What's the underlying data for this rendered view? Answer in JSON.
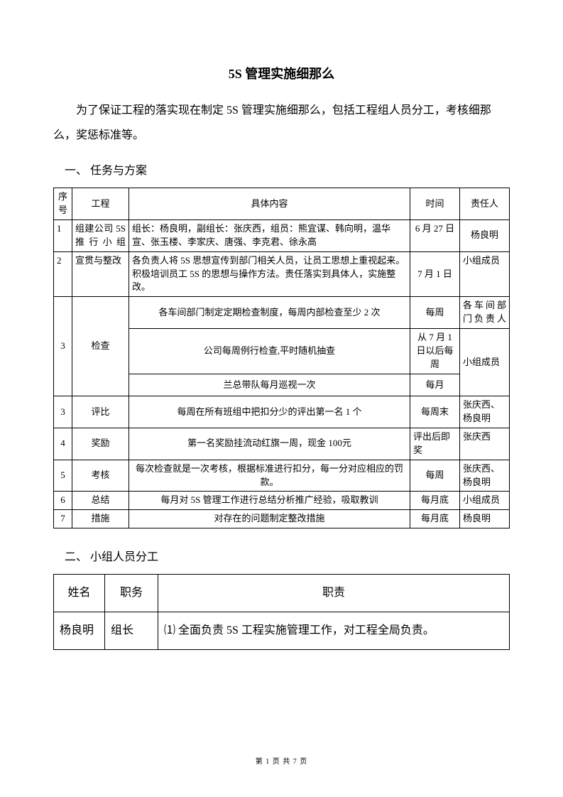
{
  "title": "5S 管理实施细那么",
  "intro": "为了保证工程的落实现在制定 5S 管理实施细那么，包括工程组人员分工，考核细那么，奖惩标准等。",
  "section1_heading": "一、 任务与方案",
  "table1": {
    "headers": {
      "seq": "序号",
      "project": "工程",
      "content": "具体内容",
      "time": "时间",
      "responsible": "责任人"
    },
    "r1": {
      "seq": "1",
      "project": "组建公司 5S 推行小组",
      "content": "组长：杨良明，副组长：张庆西，组员：熊宜谋、韩向明，温华宣、张玉楼、李家庆、唐强、李克君、徐永高",
      "time": "6 月 27 日",
      "responsible": "杨良明"
    },
    "r2": {
      "seq": "2",
      "project": "宣贯与整改",
      "content": "各负责人将 5S 思想宣传到部门相关人员，让员工思想上重视起来。积极培训员工 5S 的思想与操作方法。责任落实到具体人，实施整改。",
      "time": "7 月 1 日",
      "responsible": "小组成员"
    },
    "r3": {
      "seq": "3",
      "project": "检查",
      "sub1_content": "各车间部门制定定期检查制度，每周内部检查至少 2 次",
      "sub1_time": "每周",
      "sub1_resp": "各车间部门负责人",
      "sub2_content": "公司每周例行检查,平时随机抽查",
      "sub2_time": "从 7 月 1日以后每周",
      "sub2_resp": "小组成员",
      "sub3_content": "兰总带队每月巡视一次",
      "sub3_time": "每月"
    },
    "r4": {
      "seq": "3",
      "project": "评比",
      "content": "每周在所有班组中把扣分少的评出第一名 1 个",
      "time": "每周末",
      "responsible": "张庆西、杨良明"
    },
    "r5": {
      "seq": "4",
      "project": "奖励",
      "content": "第一名奖励挂流动红旗一周，现金 100元",
      "time": "评出后即奖",
      "responsible": "张庆西"
    },
    "r6": {
      "seq": "5",
      "project": "考核",
      "content": "每次检查就是一次考核，根据标准进行扣分，每一分对应相应的罚款。",
      "time": "每周",
      "responsible": "张庆西、杨良明"
    },
    "r7": {
      "seq": "6",
      "project": "总结",
      "content": "每月对 5S 管理工作进行总结分析推广经验，吸取教训",
      "time": "每月底",
      "responsible": "小组成员"
    },
    "r8": {
      "seq": "7",
      "project": "措施",
      "content": "对存在的问题制定整改措施",
      "time": "每月底",
      "responsible": "杨良明"
    }
  },
  "section2_heading": "二、 小组人员分工",
  "table2": {
    "headers": {
      "name": "姓名",
      "role": "职务",
      "duty": "职责"
    },
    "r1": {
      "name": "杨良明",
      "role": "组长",
      "duty": "⑴ 全面负责 5S 工程实施管理工作，对工程全局负责。"
    }
  },
  "footer": "第 1 页 共 7 页"
}
